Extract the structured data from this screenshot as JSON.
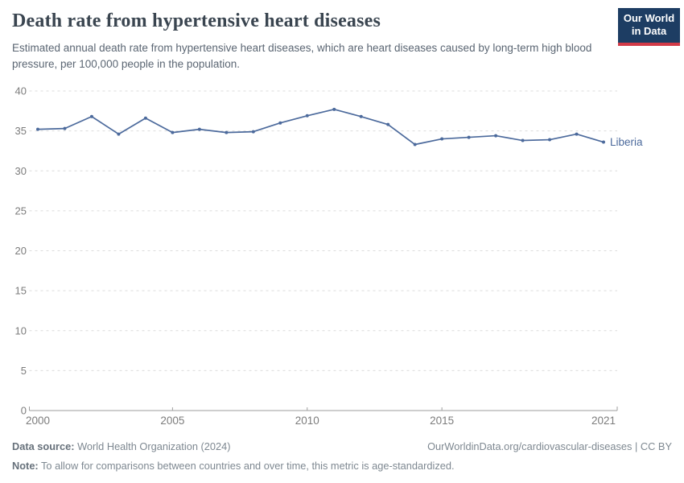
{
  "header": {
    "title": "Death rate from hypertensive heart diseases",
    "subtitle": "Estimated annual death rate from hypertensive heart diseases, which are heart diseases caused by long-term high blood pressure, per 100,000 people in the population.",
    "logo": {
      "line1": "Our World",
      "line2": "in Data",
      "bg_color": "#1d3d63",
      "accent_color": "#d23a47"
    }
  },
  "chart_data": {
    "type": "line",
    "title": "Death rate from hypertensive heart diseases",
    "xlabel": "",
    "ylabel": "",
    "x": [
      2000,
      2001,
      2002,
      2003,
      2004,
      2005,
      2006,
      2007,
      2008,
      2009,
      2010,
      2011,
      2012,
      2013,
      2014,
      2015,
      2016,
      2017,
      2018,
      2019,
      2020,
      2021
    ],
    "series": [
      {
        "name": "Liberia",
        "color": "#4C6A9C",
        "values": [
          35.2,
          35.3,
          36.8,
          34.6,
          36.6,
          34.8,
          35.2,
          34.8,
          34.9,
          36.0,
          36.9,
          37.7,
          36.8,
          35.8,
          33.3,
          34.0,
          34.2,
          34.4,
          33.8,
          33.9,
          34.6,
          33.6
        ]
      }
    ],
    "ylim": [
      0,
      40
    ],
    "yticks": [
      0,
      5,
      10,
      15,
      20,
      25,
      30,
      35,
      40
    ],
    "xticks": [
      2000,
      2005,
      2010,
      2015,
      2021
    ],
    "grid": "horizontal-dashed",
    "legend_position": "line-end-label",
    "grid_color": "#dcdcdc",
    "axis_color": "#9e9e9e",
    "tick_label_color": "#7c7c7c"
  },
  "footer": {
    "datasource_label": "Data source:",
    "datasource_text": " World Health Organization (2024)",
    "link_text": "OurWorldinData.org/cardiovascular-diseases | CC BY",
    "note_label": "Note:",
    "note_text": " To allow for comparisons between countries and over time, this metric is age-standardized."
  }
}
